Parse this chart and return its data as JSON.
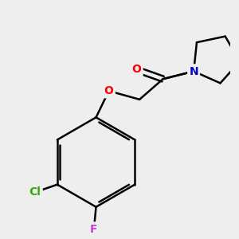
{
  "background_color": "#eeeeee",
  "atom_colors": {
    "C": "#000000",
    "O": "#ff0000",
    "N": "#0000cc",
    "Cl": "#33aa00",
    "F": "#cc44cc"
  },
  "bond_color": "#000000",
  "bond_width": 1.8,
  "font_size_atoms": 10
}
